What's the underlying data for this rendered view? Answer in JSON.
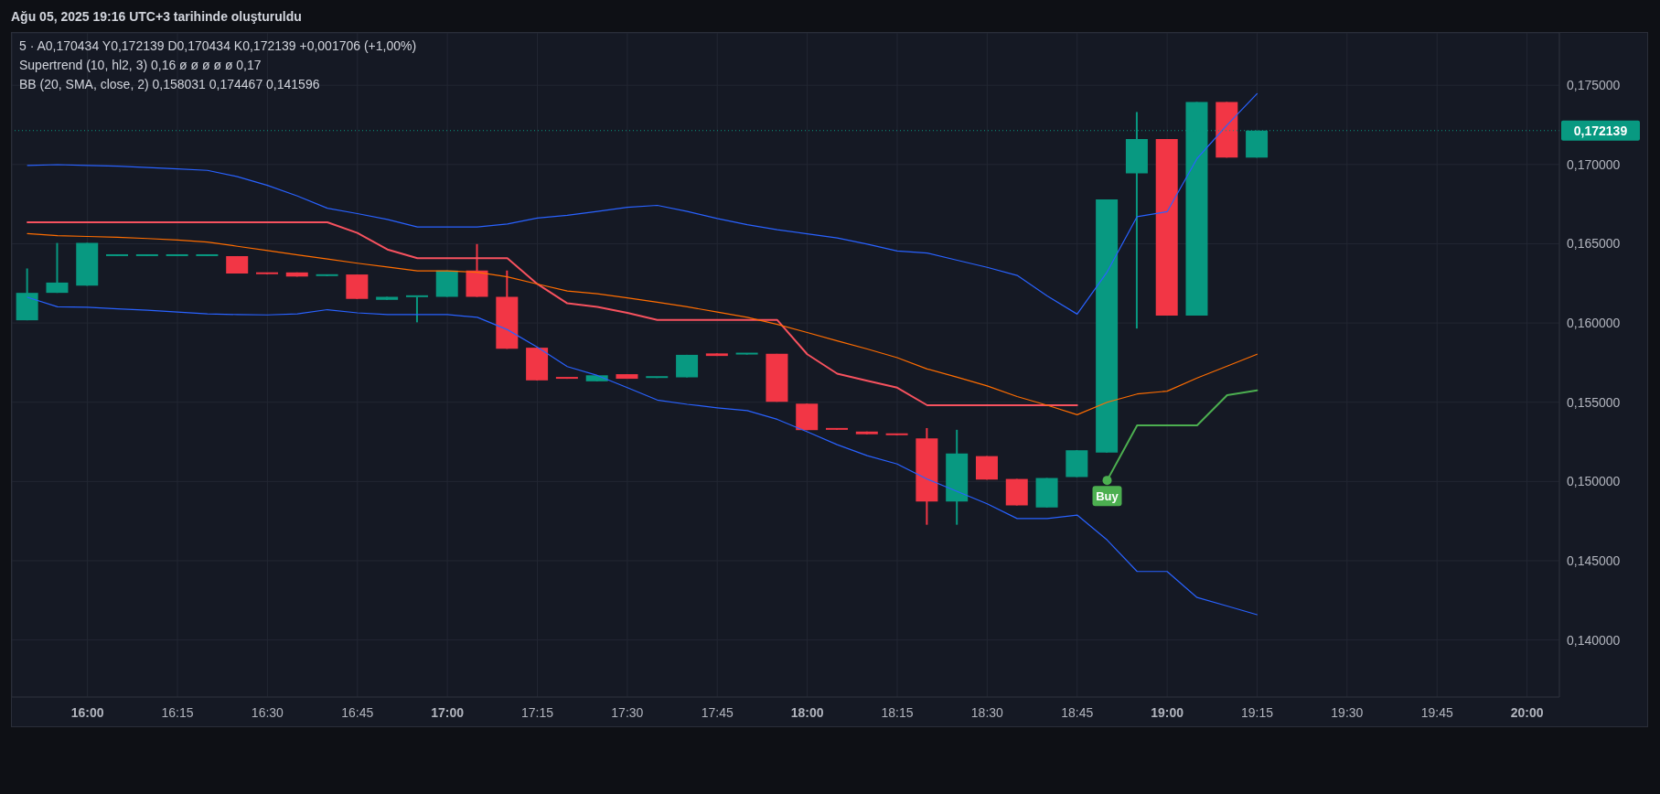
{
  "chart_data": {
    "type": "candlestick",
    "x": [
      15.8333,
      15.9167,
      16,
      16.0833,
      16.1667,
      16.25,
      16.3333,
      16.4167,
      16.5,
      16.5833,
      16.6667,
      16.75,
      16.8333,
      16.9167,
      17,
      17.0833,
      17.1667,
      17.25,
      17.3333,
      17.4167,
      17.5,
      17.5833,
      17.6667,
      17.75,
      17.8333,
      17.9167,
      18,
      18.0833,
      18.1667,
      18.25,
      18.3333,
      18.4167,
      18.5,
      18.5833,
      18.6667,
      18.75,
      18.8333,
      18.9167,
      19,
      19.0833,
      19.1667,
      19.25
    ],
    "ohlc": [
      [
        0.16017,
        0.16344,
        0.16017,
        0.1619
      ],
      [
        0.1619,
        0.16505,
        0.1619,
        0.16255
      ],
      [
        0.16235,
        0.16505,
        0.16235,
        0.16505
      ],
      [
        0.16422,
        0.16422,
        0.16422,
        0.16422
      ],
      [
        0.16422,
        0.16422,
        0.16422,
        0.16422
      ],
      [
        0.16422,
        0.16422,
        0.16422,
        0.16422
      ],
      [
        0.16422,
        0.16422,
        0.16422,
        0.16422
      ],
      [
        0.16422,
        0.16422,
        0.16312,
        0.16312
      ],
      [
        0.16308,
        0.16308,
        0.16308,
        0.16308
      ],
      [
        0.16319,
        0.16319,
        0.16293,
        0.16293
      ],
      [
        0.16296,
        0.16306,
        0.16296,
        0.16306
      ],
      [
        0.16306,
        0.16306,
        0.16152,
        0.16152
      ],
      [
        0.16146,
        0.16165,
        0.16146,
        0.16165
      ],
      [
        0.16163,
        0.16163,
        0.16004,
        0.16163
      ],
      [
        0.16165,
        0.16331,
        0.16165,
        0.16331
      ],
      [
        0.16331,
        0.16498,
        0.16165,
        0.16165
      ],
      [
        0.16165,
        0.16331,
        0.15837,
        0.15837
      ],
      [
        0.15844,
        0.15844,
        0.15638,
        0.15638
      ],
      [
        0.15648,
        0.15648,
        0.15648,
        0.15648
      ],
      [
        0.15632,
        0.1567,
        0.15632,
        0.1567
      ],
      [
        0.15677,
        0.15677,
        0.15648,
        0.15648
      ],
      [
        0.15653,
        0.15653,
        0.15653,
        0.15653
      ],
      [
        0.15657,
        0.15799,
        0.15657,
        0.15799
      ],
      [
        0.15808,
        0.15808,
        0.15792,
        0.15792
      ],
      [
        0.15801,
        0.15801,
        0.15801,
        0.15801
      ],
      [
        0.15805,
        0.15805,
        0.15503,
        0.15503
      ],
      [
        0.15491,
        0.15491,
        0.15324,
        0.15324
      ],
      [
        0.15326,
        0.15326,
        0.15326,
        0.15326
      ],
      [
        0.15315,
        0.15315,
        0.15298,
        0.15298
      ],
      [
        0.15292,
        0.15292,
        0.15292,
        0.15292
      ],
      [
        0.15272,
        0.15337,
        0.14727,
        0.14874
      ],
      [
        0.14874,
        0.15326,
        0.14727,
        0.15176
      ],
      [
        0.1516,
        0.1516,
        0.15012,
        0.15012
      ],
      [
        0.15016,
        0.15016,
        0.14849,
        0.14849
      ],
      [
        0.14836,
        0.15022,
        0.14836,
        0.15022
      ],
      [
        0.15028,
        0.15197,
        0.15028,
        0.15197
      ],
      [
        0.15183,
        0.16779,
        0.15183,
        0.16779
      ],
      [
        0.16944,
        0.17331,
        0.15965,
        0.1716
      ],
      [
        0.1716,
        0.1716,
        0.16047,
        0.16047
      ],
      [
        0.16047,
        0.17394,
        0.16047,
        0.17394
      ],
      [
        0.17394,
        0.17394,
        0.170434,
        0.170434
      ],
      [
        0.170434,
        0.172139,
        0.170434,
        0.172139
      ]
    ],
    "colors": [
      "#089981",
      "#089981",
      "#089981",
      "#089981",
      "#089981",
      "#089981",
      "#089981",
      "#f23645",
      "#f23645",
      "#f23645",
      "#089981",
      "#f23645",
      "#089981",
      "#089981",
      "#089981",
      "#f23645",
      "#f23645",
      "#f23645",
      "#f23645",
      "#089981",
      "#f23645",
      "#089981",
      "#089981",
      "#f23645",
      "#089981",
      "#f23645",
      "#f23645",
      "#f23645",
      "#f23645",
      "#f23645",
      "#f23645",
      "#089981",
      "#f23645",
      "#f23645",
      "#089981",
      "#089981",
      "#089981",
      "#089981",
      "#f23645",
      "#089981",
      "#f23645",
      "#089981"
    ],
    "series": [
      {
        "type": "line",
        "color": "#f7525f",
        "values": [
          0.16635,
          0.16635,
          0.16635,
          0.16635,
          0.16635,
          0.16635,
          0.16635,
          0.16635,
          0.16635,
          0.16635,
          0.16635,
          0.16568,
          0.16464,
          0.16409,
          0.16409,
          0.16409,
          0.16409,
          0.16246,
          0.16124,
          0.16102,
          0.16064,
          0.16019,
          0.16019,
          0.16019,
          0.16019,
          0.16019,
          0.15803,
          0.1568,
          0.15636,
          0.15592,
          0.15481,
          0.15481,
          0.15481,
          0.15481,
          0.15481,
          0.15481,
          null,
          null,
          null,
          null,
          null,
          null
        ]
      },
      {
        "type": "line",
        "color": "#4caf50",
        "values": [
          null,
          null,
          null,
          null,
          null,
          null,
          null,
          null,
          null,
          null,
          null,
          null,
          null,
          null,
          null,
          null,
          null,
          null,
          null,
          null,
          null,
          null,
          null,
          null,
          null,
          null,
          null,
          null,
          null,
          null,
          null,
          null,
          null,
          null,
          null,
          null,
          0.15007,
          0.15354,
          0.15354,
          0.15354,
          0.15545,
          0.15575
        ]
      },
      {
        "type": "line",
        "color": "#2962ff",
        "values": [
          0.16994,
          0.16999,
          0.16994,
          0.1699,
          0.16981,
          0.16972,
          0.16963,
          0.16923,
          0.16868,
          0.16801,
          0.16724,
          0.1669,
          0.16653,
          0.16606,
          0.16606,
          0.16606,
          0.16624,
          0.16662,
          0.16679,
          0.16704,
          0.1673,
          0.16742,
          0.16704,
          0.16659,
          0.1662,
          0.16588,
          0.16563,
          0.16537,
          0.16498,
          0.16454,
          0.16441,
          0.16396,
          0.16351,
          0.163,
          0.16171,
          0.16056,
          0.16322,
          0.16671,
          0.16702,
          0.17038,
          0.17249,
          0.174467
        ]
      },
      {
        "type": "line",
        "color": "#ff6d00",
        "values": [
          0.16564,
          0.16551,
          0.16546,
          0.16541,
          0.16533,
          0.16524,
          0.16511,
          0.16484,
          0.16457,
          0.1643,
          0.16404,
          0.16377,
          0.16353,
          0.16329,
          0.16329,
          0.1632,
          0.16291,
          0.16246,
          0.16202,
          0.16184,
          0.16158,
          0.16131,
          0.16102,
          0.16069,
          0.16036,
          0.15991,
          0.1594,
          0.15887,
          0.15836,
          0.15781,
          0.1571,
          0.15658,
          0.15603,
          0.15536,
          0.15481,
          0.15421,
          0.155,
          0.15552,
          0.1557,
          0.15653,
          0.15728,
          0.158031
        ]
      },
      {
        "type": "line",
        "color": "#2962ff",
        "values": [
          0.16162,
          0.16102,
          0.16099,
          0.16089,
          0.1608,
          0.16069,
          0.16058,
          0.16053,
          0.16051,
          0.16058,
          0.16084,
          0.16064,
          0.16053,
          0.16053,
          0.16053,
          0.16036,
          0.15958,
          0.15847,
          0.15725,
          0.15669,
          0.15592,
          0.15514,
          0.15487,
          0.15465,
          0.15447,
          0.15392,
          0.15314,
          0.15232,
          0.15163,
          0.1511,
          0.15015,
          0.14937,
          0.14859,
          0.14766,
          0.14766,
          0.14788,
          0.14631,
          0.14432,
          0.14432,
          0.14268,
          0.14214,
          0.141596
        ]
      }
    ],
    "xlim": [
      15.79,
      20.09
    ],
    "xticks": [
      {
        "value": 16,
        "label": "16:00"
      },
      {
        "value": 16.25,
        "label": "16:15"
      },
      {
        "value": 16.5,
        "label": "16:30"
      },
      {
        "value": 16.75,
        "label": "16:45"
      },
      {
        "value": 17,
        "label": "17:00"
      },
      {
        "value": 17.25,
        "label": "17:15"
      },
      {
        "value": 17.5,
        "label": "17:30"
      },
      {
        "value": 17.75,
        "label": "17:45"
      },
      {
        "value": 18,
        "label": "18:00"
      },
      {
        "value": 18.25,
        "label": "18:15"
      },
      {
        "value": 18.5,
        "label": "18:30"
      },
      {
        "value": 18.75,
        "label": "18:45"
      },
      {
        "value": 19,
        "label": "19:00"
      },
      {
        "value": 19.25,
        "label": "19:15"
      },
      {
        "value": 19.5,
        "label": "19:30"
      },
      {
        "value": 19.75,
        "label": "19:45"
      },
      {
        "value": 20,
        "label": "20:00"
      }
    ],
    "ylim": [
      0.1364,
      0.1783
    ],
    "yticks": [
      {
        "value": 0.14,
        "label": "0,140000"
      },
      {
        "value": 0.145,
        "label": "0,145000"
      },
      {
        "value": 0.15,
        "label": "0,150000"
      },
      {
        "value": 0.155,
        "label": "0,155000"
      },
      {
        "value": 0.16,
        "label": "0,160000"
      },
      {
        "value": 0.165,
        "label": "0,165000"
      },
      {
        "value": 0.17,
        "label": "0,170000"
      },
      {
        "value": 0.175,
        "label": "0,175000"
      }
    ],
    "grid": true,
    "ref_lines": [
      {
        "axis": "y",
        "value": 0.172139,
        "label": "0,172139",
        "color": "#089981",
        "line_style": "dotted"
      }
    ],
    "annotations": [
      "Ağu 05, 2025 19:16 UTC+3 tarihinde oluşturuldu",
      "5 · A0,170434 Y0,172139 D0,170434 K0,172139 +0,001706 (+1,00%)",
      "Supertrend (10, hl2, 3) 0,16 ø ø ø ø ø 0,17",
      "BB (20, SMA, close, 2) 0,158031 0,174467 0,141596",
      {
        "text": "Buy",
        "x": 18.8333,
        "y": 0.15007
      }
    ]
  }
}
